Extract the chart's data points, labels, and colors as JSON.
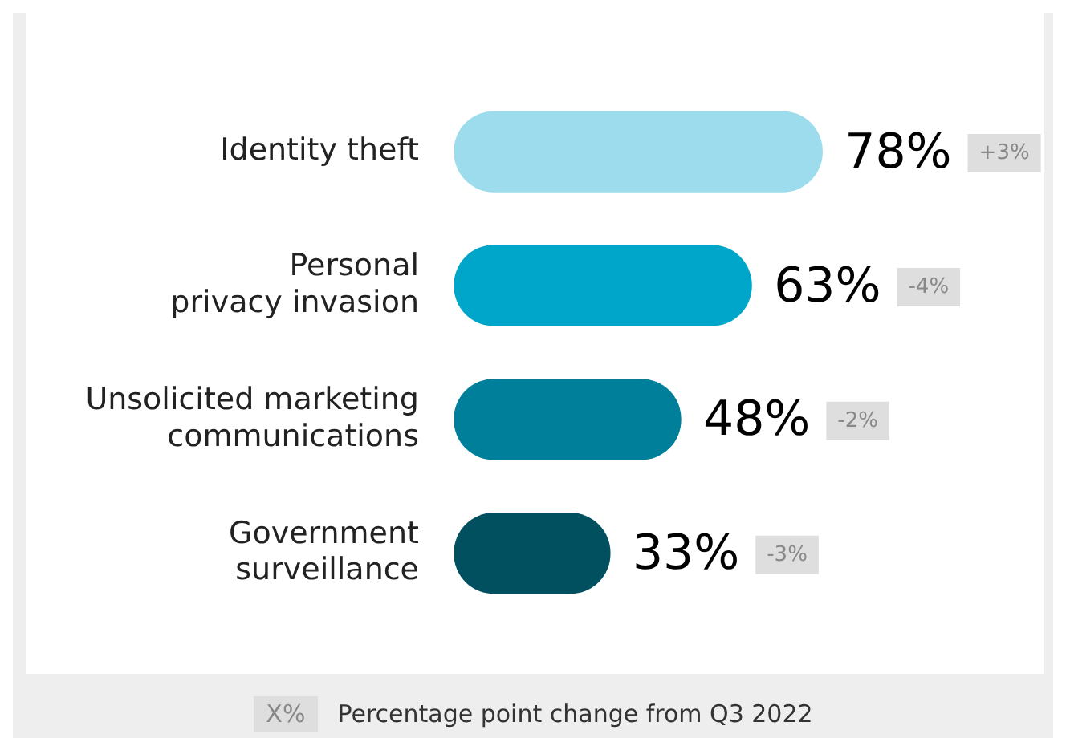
{
  "chart_data": {
    "type": "bar",
    "orientation": "horizontal",
    "categories": [
      "Identity theft",
      "Personal\nprivacy invasion",
      "Unsolicited marketing\ncommunications",
      "Government\nsurveillance"
    ],
    "values": [
      78,
      63,
      48,
      33
    ],
    "colors": [
      "#9ddcec",
      "#00a6c9",
      "#007f9b",
      "#00505f"
    ],
    "value_labels": [
      "78%",
      "63%",
      "48%",
      "33%"
    ],
    "annotations": [
      "+3%",
      "-4%",
      "-2%",
      "-3%",
      "X%",
      "Percentage point change from Q3 2022"
    ],
    "grid": false,
    "legend": false,
    "tick_labels": "y"
  }
}
